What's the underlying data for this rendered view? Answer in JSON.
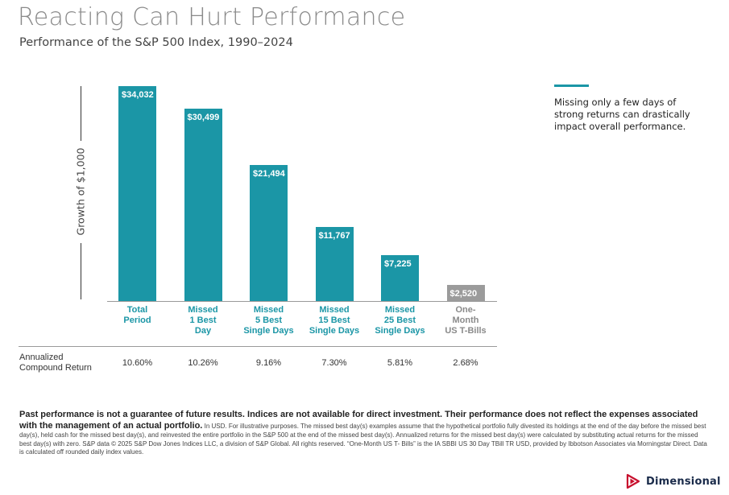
{
  "title": "Reacting Can Hurt Performance",
  "subtitle": "Performance of the S&P 500 Index, 1990–2024",
  "chart_data": {
    "type": "bar",
    "ylabel": "Growth of $1,000",
    "categories": [
      "Total\nPeriod",
      "Missed\n1 Best\nDay",
      "Missed\n5 Best\nSingle Days",
      "Missed\n15 Best\nSingle Days",
      "Missed\n25 Best\nSingle Days",
      "One-\nMonth\nUS T-Bills"
    ],
    "values": [
      34032,
      30499,
      21494,
      11767,
      7225,
      2520
    ],
    "value_labels": [
      "$34,032",
      "$30,499",
      "$21,494",
      "$11,767",
      "$7,225",
      "$2,520"
    ],
    "bar_colors": [
      "#1b96a6",
      "#1b96a6",
      "#1b96a6",
      "#1b96a6",
      "#1b96a6",
      "#9b9b9b"
    ],
    "label_colors": [
      "#1b96a6",
      "#1b96a6",
      "#1b96a6",
      "#1b96a6",
      "#1b96a6",
      "#8a8a8a"
    ],
    "ylim": [
      0,
      34032
    ],
    "grid": false
  },
  "annualized": {
    "label": "Annualized Compound Return",
    "values": [
      "10.60%",
      "10.26%",
      "9.16%",
      "7.30%",
      "5.81%",
      "2.68%"
    ]
  },
  "callout": {
    "text": "Missing only a few days of strong returns can drastically impact overall performance.",
    "color": "#1b96a6"
  },
  "disclaimer": {
    "bold": "Past performance is not a guarantee of future results. Indices are not available for direct investment. Their performance does not reflect the expenses associated with the management of an actual portfolio.",
    "text": "In USD. For illustrative purposes. The missed best day(s) examples assume that the hypothetical portfolio fully divested its holdings at the end of the day before the missed best day(s), held cash for the missed best day(s), and reinvested the entire portfolio in the S&P 500 at the end of the missed best day(s). Annualized returns for the missed best day(s) were calculated by substituting actual returns for the missed best day(s) with zero. S&P data © 2025 S&P Dow Jones Indices LLC, a division of S&P Global. All rights reserved. “One-Month US T- Bills” is the IA SBBI US 30 Day TBill TR USD, provided by Ibbotson Associates via Morningstar Direct. Data is calculated off rounded daily index values."
  },
  "logo": {
    "text": "Dimensional",
    "icon": "play-triangle-logo-icon",
    "color": "#c8102e"
  }
}
